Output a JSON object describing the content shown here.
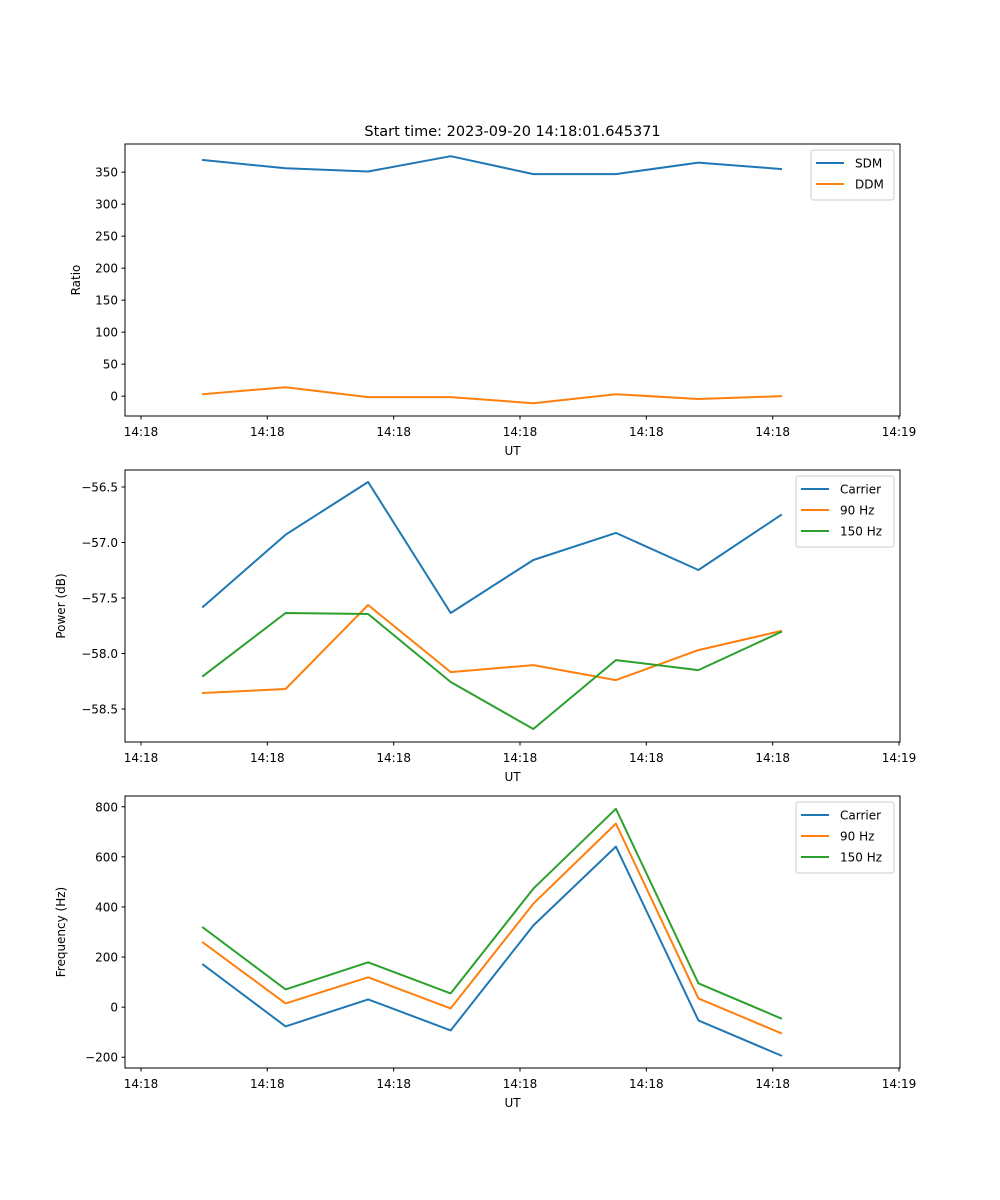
{
  "figure": {
    "title": "Start time: 2023-09-20 14:18:01.645371"
  },
  "chart_data": [
    {
      "type": "line",
      "title": "Start time: 2023-09-20 14:18:01.645371",
      "xlabel": "UT",
      "ylabel": "Ratio",
      "x": [
        1,
        2,
        3,
        4,
        5,
        6,
        7,
        8
      ],
      "xlim": [
        -0.2,
        8.2
      ],
      "xticks": [
        0,
        1.5276,
        3.0552,
        4.5828,
        6.1104,
        7.638,
        9.1656
      ],
      "xtick_labels": [
        "14:18",
        "14:18",
        "14:18",
        "14:18",
        "14:18",
        "14:18",
        "14:19"
      ],
      "ylim": [
        -31,
        394
      ],
      "yticks": [
        0,
        50,
        100,
        150,
        200,
        250,
        300,
        350
      ],
      "ytick_labels": [
        "0",
        "50",
        "100",
        "150",
        "200",
        "250",
        "300",
        "350"
      ],
      "grid": false,
      "legend": "top-right",
      "series": [
        {
          "name": "SDM",
          "color": "#1f77b4",
          "values": [
            369,
            356,
            351,
            375,
            347,
            347,
            365,
            355
          ]
        },
        {
          "name": "DDM",
          "color": "#ff7f0e",
          "values": [
            3,
            14,
            -1.5,
            -1.5,
            -11,
            3,
            -4.5,
            0
          ]
        }
      ]
    },
    {
      "type": "line",
      "title": "",
      "xlabel": "UT",
      "ylabel": "Power (dB)",
      "x": [
        1,
        2,
        3,
        4,
        5,
        6,
        7,
        8
      ],
      "xlim": [
        -0.2,
        8.2
      ],
      "xticks": [
        0,
        1.5276,
        3.0552,
        4.5828,
        6.1104,
        7.638,
        9.1656
      ],
      "xtick_labels": [
        "14:18",
        "14:18",
        "14:18",
        "14:18",
        "14:18",
        "14:18",
        "14:19"
      ],
      "ylim": [
        -58.797,
        -56.347
      ],
      "yticks": [
        -58.5,
        -58.0,
        -57.5,
        -57.0,
        -56.5
      ],
      "ytick_labels": [
        "−58.5",
        "−58.0",
        "−57.5",
        "−57.0",
        "−56.5"
      ],
      "grid": false,
      "legend": "top-right",
      "series": [
        {
          "name": "Carrier",
          "color": "#1f77b4",
          "values": [
            -57.58,
            -56.93,
            -56.455,
            -57.635,
            -57.158,
            -56.914,
            -57.248,
            -56.752
          ]
        },
        {
          "name": "90 Hz",
          "color": "#ff7f0e",
          "values": [
            -58.356,
            -58.32,
            -57.563,
            -58.167,
            -58.104,
            -58.239,
            -57.969,
            -57.797
          ]
        },
        {
          "name": "150 Hz",
          "color": "#2ca02c",
          "values": [
            -58.203,
            -57.635,
            -57.644,
            -58.257,
            -58.68,
            -58.059,
            -58.149,
            -57.806
          ]
        }
      ]
    },
    {
      "type": "line",
      "title": "",
      "xlabel": "UT",
      "ylabel": "Frequency (Hz)",
      "x": [
        1,
        2,
        3,
        4,
        5,
        6,
        7,
        8
      ],
      "xlim": [
        -0.2,
        8.2
      ],
      "xticks": [
        0,
        1.5276,
        3.0552,
        4.5828,
        6.1104,
        7.638,
        9.1656
      ],
      "xtick_labels": [
        "14:18",
        "14:18",
        "14:18",
        "14:18",
        "14:18",
        "14:18",
        "14:19"
      ],
      "ylim": [
        -243,
        843
      ],
      "yticks": [
        -200,
        0,
        200,
        400,
        600,
        800
      ],
      "ytick_labels": [
        "−200",
        "0",
        "200",
        "400",
        "600",
        "800"
      ],
      "grid": false,
      "legend": "top-right",
      "series": [
        {
          "name": "Carrier",
          "color": "#1f77b4",
          "values": [
            170,
            -77,
            31,
            -93,
            326,
            641,
            -53,
            -193
          ]
        },
        {
          "name": "90 Hz",
          "color": "#ff7f0e",
          "values": [
            258,
            15,
            119,
            -5,
            413,
            733,
            35,
            -104
          ]
        },
        {
          "name": "150 Hz",
          "color": "#2ca02c",
          "values": [
            318,
            71,
            179,
            55,
            473,
            792,
            95,
            -45
          ]
        }
      ]
    }
  ]
}
